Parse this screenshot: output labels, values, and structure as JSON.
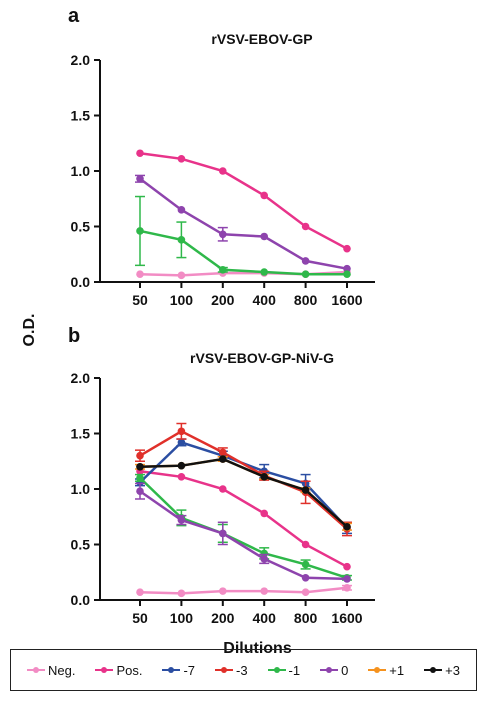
{
  "chart_data": [
    {
      "type": "line",
      "panel_label": "a",
      "title": "rVSV-EBOV-GP",
      "xlabel": "",
      "ylabel": "O.D.",
      "categories": [
        "50",
        "100",
        "200",
        "400",
        "800",
        "1600"
      ],
      "ylim": [
        0,
        2.0
      ],
      "yticks": [
        "0.0",
        "0.5",
        "1.0",
        "1.5",
        "2.0"
      ],
      "series": [
        {
          "name": "Neg.",
          "color": "#f28cc4",
          "values": [
            0.07,
            0.06,
            0.08,
            0.08,
            0.07,
            0.09
          ],
          "err": [
            0.01,
            0.01,
            0.01,
            0.01,
            0.01,
            0.01
          ]
        },
        {
          "name": "Pos.",
          "color": "#e8338a",
          "values": [
            1.16,
            1.11,
            1.0,
            0.78,
            0.5,
            0.3
          ],
          "err": [
            0.01,
            0.01,
            0.01,
            0.01,
            0.01,
            0.01
          ]
        },
        {
          "name": "0",
          "color": "#8e44ad",
          "values": [
            0.93,
            0.65,
            0.43,
            0.41,
            0.19,
            0.12
          ],
          "err": [
            0.03,
            0.01,
            0.06,
            0.01,
            0.01,
            0.01
          ]
        },
        {
          "name": "-1",
          "color": "#2fb84a",
          "values": [
            0.46,
            0.38,
            0.11,
            0.09,
            0.07,
            0.07
          ],
          "err": [
            0.31,
            0.16,
            0.02,
            0.01,
            0.01,
            0.01
          ]
        }
      ]
    },
    {
      "type": "line",
      "panel_label": "b",
      "title": "rVSV-EBOV-GP-NiV-G",
      "xlabel": "Dilutions",
      "ylabel": "O.D.",
      "categories": [
        "50",
        "100",
        "200",
        "400",
        "800",
        "1600"
      ],
      "ylim": [
        0,
        2.0
      ],
      "yticks": [
        "0.0",
        "0.5",
        "1.0",
        "1.5",
        "2.0"
      ],
      "series": [
        {
          "name": "Neg.",
          "color": "#f28cc4",
          "values": [
            0.07,
            0.06,
            0.08,
            0.08,
            0.07,
            0.11
          ],
          "err": [
            0.01,
            0.01,
            0.01,
            0.01,
            0.01,
            0.02
          ]
        },
        {
          "name": "Pos.",
          "color": "#e8338a",
          "values": [
            1.16,
            1.11,
            1.0,
            0.78,
            0.5,
            0.3
          ],
          "err": [
            0.01,
            0.01,
            0.01,
            0.01,
            0.01,
            0.01
          ]
        },
        {
          "name": "-7",
          "color": "#2b4ea2",
          "values": [
            1.06,
            1.42,
            1.3,
            1.16,
            1.05,
            0.65
          ],
          "err": [
            0.03,
            0.03,
            0.04,
            0.06,
            0.08,
            0.05
          ]
        },
        {
          "name": "-3",
          "color": "#e0302a",
          "values": [
            1.3,
            1.52,
            1.33,
            1.12,
            0.97,
            0.64
          ],
          "err": [
            0.05,
            0.07,
            0.04,
            0.04,
            0.1,
            0.06
          ]
        },
        {
          "name": "-1",
          "color": "#2fb84a",
          "values": [
            1.1,
            0.74,
            0.6,
            0.42,
            0.32,
            0.2
          ],
          "err": [
            0.03,
            0.07,
            0.08,
            0.05,
            0.04,
            0.02
          ]
        },
        {
          "name": "0",
          "color": "#8e44ad",
          "values": [
            0.98,
            0.72,
            0.6,
            0.37,
            0.2,
            0.19
          ],
          "err": [
            0.07,
            0.04,
            0.1,
            0.04,
            0.01,
            0.01
          ]
        },
        {
          "name": "+1",
          "color": "#f5921e",
          "values": [
            1.2,
            1.21,
            1.27,
            1.11,
            0.99,
            0.66
          ],
          "err": [
            0.02,
            0.01,
            0.02,
            0.02,
            0.02,
            0.03
          ]
        },
        {
          "name": "+3",
          "color": "#111111",
          "values": [
            1.2,
            1.21,
            1.27,
            1.11,
            0.99,
            0.66
          ],
          "err": [
            0.01,
            0.01,
            0.01,
            0.01,
            0.01,
            0.01
          ]
        }
      ]
    }
  ],
  "legend": {
    "placement": "bottom",
    "items": [
      {
        "label": "Neg.",
        "color": "#f28cc4"
      },
      {
        "label": "Pos.",
        "color": "#e8338a"
      },
      {
        "label": "-7",
        "color": "#2b4ea2"
      },
      {
        "label": "-3",
        "color": "#e0302a"
      },
      {
        "label": "-1",
        "color": "#2fb84a"
      },
      {
        "label": "0",
        "color": "#8e44ad"
      },
      {
        "label": "+1",
        "color": "#f5921e"
      },
      {
        "label": "+3",
        "color": "#111111"
      }
    ]
  }
}
